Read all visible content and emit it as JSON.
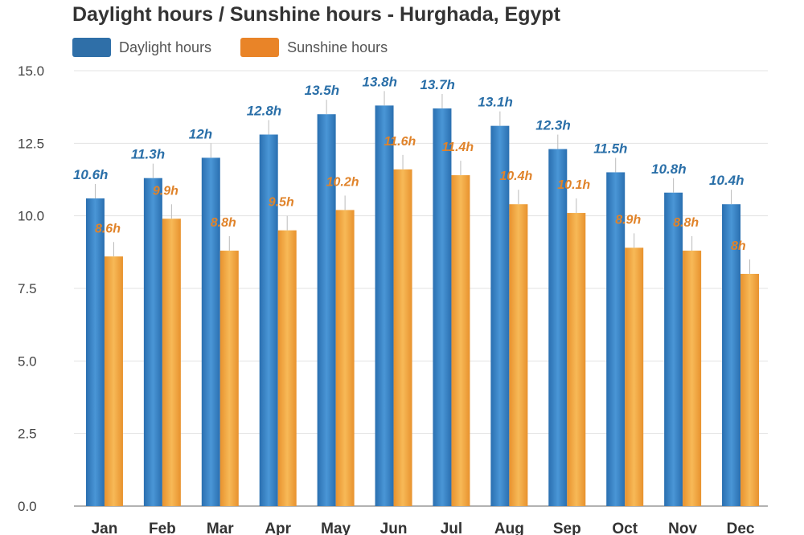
{
  "chart_data": {
    "type": "bar",
    "title": "Daylight hours / Sunshine hours - Hurghada, Egypt",
    "categories": [
      "Jan",
      "Feb",
      "Mar",
      "Apr",
      "May",
      "Jun",
      "Jul",
      "Aug",
      "Sep",
      "Oct",
      "Nov",
      "Dec"
    ],
    "series": [
      {
        "name": "Daylight hours",
        "color": "#2f7fc1",
        "values": [
          10.6,
          11.3,
          12,
          12.8,
          13.5,
          13.8,
          13.7,
          13.1,
          12.3,
          11.5,
          10.8,
          10.4
        ],
        "labels": [
          "10.6h",
          "11.3h",
          "12h",
          "12.8h",
          "13.5h",
          "13.8h",
          "13.7h",
          "13.1h",
          "12.3h",
          "11.5h",
          "10.8h",
          "10.4h"
        ]
      },
      {
        "name": "Sunshine hours",
        "color": "#f0952a",
        "values": [
          8.6,
          9.9,
          8.8,
          9.5,
          10.2,
          11.6,
          11.4,
          10.4,
          10.1,
          8.9,
          8.8,
          8
        ],
        "labels": [
          "8.6h",
          "9.9h",
          "8.8h",
          "9.5h",
          "10.2h",
          "11.6h",
          "11.4h",
          "10.4h",
          "10.1h",
          "8.9h",
          "8.8h",
          "8h"
        ]
      }
    ],
    "yticks": [
      "0.0",
      "2.5",
      "5.0",
      "7.5",
      "10.0",
      "12.5",
      "15.0"
    ],
    "ylim": [
      0,
      15
    ],
    "grid": true,
    "legend_position": "top-left"
  }
}
